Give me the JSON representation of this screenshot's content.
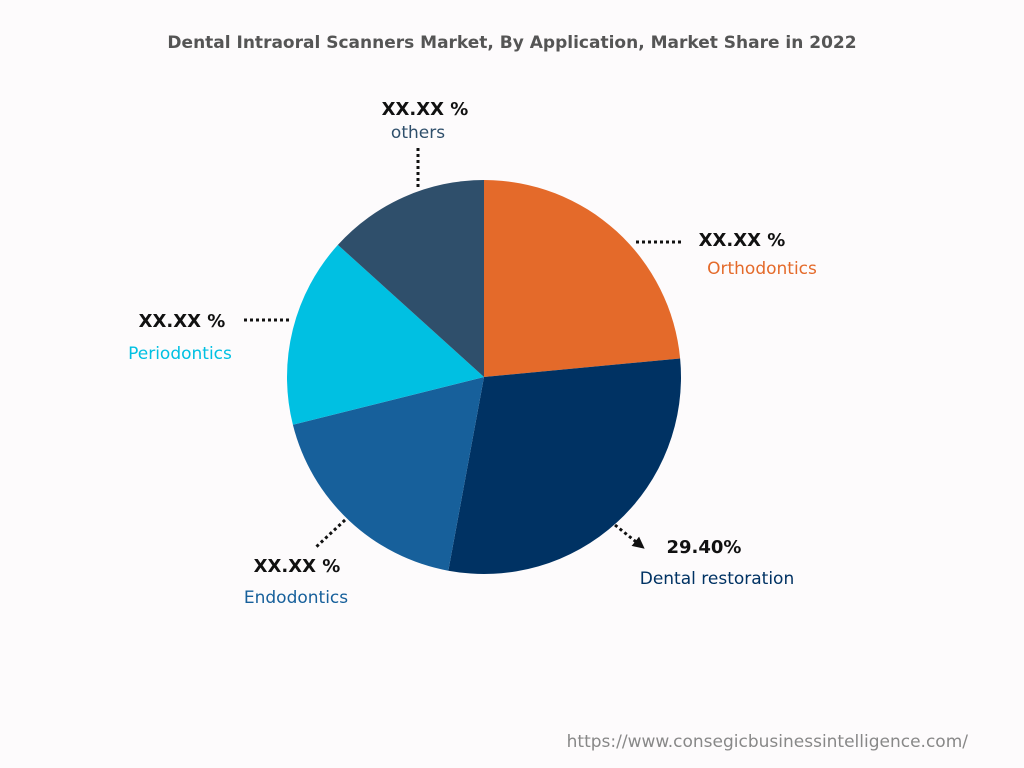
{
  "chart_data": {
    "type": "pie",
    "title": "Dental Intraoral Scanners Market, By Application, Market Share in 2022",
    "categories": [
      "Orthodontics",
      "Dental restoration",
      "Endodontics",
      "Periodontics",
      "others"
    ],
    "values": [
      23.5,
      29.4,
      18.2,
      15.6,
      13.3
    ],
    "value_labels": [
      "XX.XX %",
      "29.40%",
      "XX.XX %",
      "XX.XX %",
      "XX.XX %"
    ],
    "colors": [
      "#e46a2a",
      "#003263",
      "#17609b",
      "#00c0e2",
      "#2f4f6b"
    ]
  },
  "source": "https://www.consegicbusinessintelligence.com/"
}
